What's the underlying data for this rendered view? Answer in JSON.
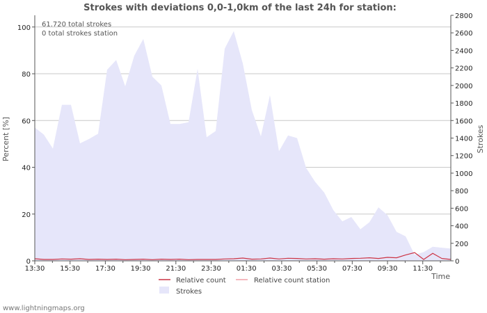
{
  "chart_data": {
    "type": "area",
    "title": "Strokes with deviations 0,0-1,0km of the last 24h for station:",
    "xlabel": "Time",
    "ylabel_left": "Percent   [%]",
    "ylabel_right": "Strokes",
    "ylim_left": [
      0,
      105
    ],
    "ylim_right": [
      0,
      2800
    ],
    "left_ticks": [
      0,
      20,
      40,
      60,
      80,
      100
    ],
    "right_ticks": [
      0,
      200,
      400,
      600,
      800,
      1000,
      1200,
      1400,
      1600,
      1800,
      2000,
      2200,
      2400,
      2600,
      2800
    ],
    "x_tick_labels": [
      "13:30",
      "15:30",
      "17:30",
      "19:30",
      "21:30",
      "23:30",
      "01:30",
      "03:30",
      "05:30",
      "07:30",
      "09:30",
      "11:30"
    ],
    "annotations": [
      "61.720 total strokes",
      "0 total strokes station"
    ],
    "legend": {
      "relative_count": "Relative count",
      "relative_count_station": "Relative count station",
      "strokes": "Strokes"
    },
    "series": [
      {
        "name": "Strokes",
        "axis": "right",
        "color": "#e6e6fa",
        "values": [
          1520,
          1440,
          1280,
          1780,
          1780,
          1340,
          1390,
          1450,
          2180,
          2290,
          1990,
          2340,
          2530,
          2100,
          2000,
          1560,
          1560,
          1580,
          2190,
          1410,
          1480,
          2420,
          2620,
          2250,
          1720,
          1420,
          1890,
          1250,
          1430,
          1400,
          1060,
          900,
          780,
          580,
          450,
          500,
          360,
          440,
          610,
          520,
          330,
          280,
          70,
          100,
          160,
          150,
          140
        ]
      },
      {
        "name": "Relative count",
        "axis": "left",
        "color": "#cc3344",
        "values": [
          0.9,
          0.6,
          0.6,
          0.8,
          0.7,
          0.9,
          0.6,
          0.7,
          0.6,
          0.7,
          0.5,
          0.6,
          0.7,
          0.5,
          0.7,
          0.6,
          0.7,
          0.5,
          0.6,
          0.6,
          0.6,
          0.8,
          0.9,
          1.2,
          0.7,
          0.8,
          1.2,
          0.8,
          1.1,
          1.0,
          0.8,
          0.9,
          0.7,
          0.9,
          0.8,
          1.0,
          1.1,
          1.3,
          1.0,
          1.5,
          1.3,
          2.5,
          3.5,
          0.6,
          3.2,
          1.0,
          0.6
        ]
      },
      {
        "name": "Relative count station",
        "axis": "left",
        "color": "#f0a0a8",
        "values": []
      }
    ]
  },
  "credit": "www.lightningmaps.org"
}
